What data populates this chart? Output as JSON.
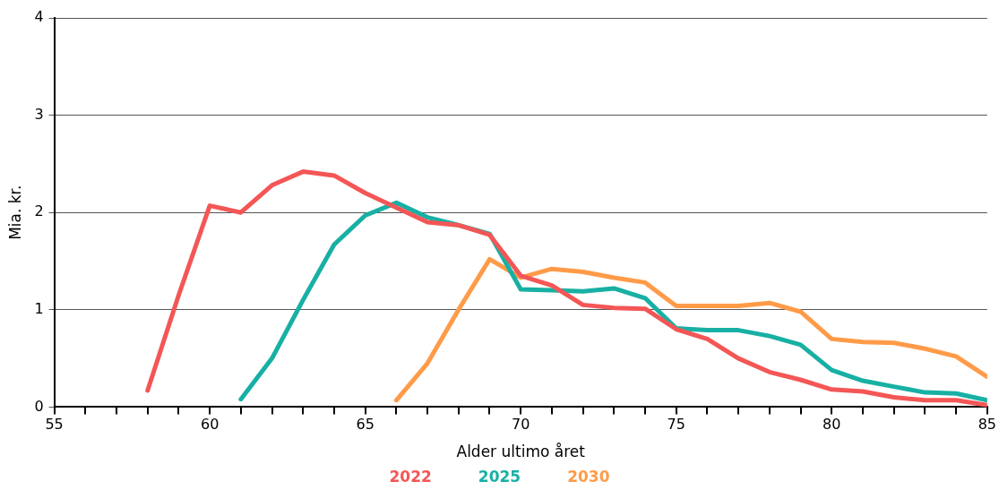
{
  "chart_data": {
    "type": "line",
    "xlabel": "Alder ultimo året",
    "ylabel": "Mia. kr.",
    "xlim": [
      55,
      85
    ],
    "xticks": [
      55,
      {
        "value": 56,
        "label": null
      },
      {
        "value": 57,
        "label": null
      },
      {
        "value": 58,
        "label": null
      },
      {
        "value": 59,
        "label": null
      },
      60,
      {
        "value": 61,
        "label": null
      },
      {
        "value": 62,
        "label": null
      },
      {
        "value": 63,
        "label": null
      },
      {
        "value": 64,
        "label": null
      },
      65,
      {
        "value": 66,
        "label": null
      },
      {
        "value": 67,
        "label": null
      },
      {
        "value": 68,
        "label": null
      },
      {
        "value": 69,
        "label": null
      },
      70,
      {
        "value": 71,
        "label": null
      },
      {
        "value": 72,
        "label": null
      },
      {
        "value": 73,
        "label": null
      },
      {
        "value": 74,
        "label": null
      },
      75,
      {
        "value": 76,
        "label": null
      },
      {
        "value": 77,
        "label": null
      },
      {
        "value": 78,
        "label": null
      },
      {
        "value": 79,
        "label": null
      },
      80,
      {
        "value": 81,
        "label": null
      },
      {
        "value": 82,
        "label": null
      },
      {
        "value": 83,
        "label": null
      },
      {
        "value": 84,
        "label": null
      },
      85
    ],
    "ylim": [
      0,
      4
    ],
    "yticks": [
      0,
      1,
      2,
      3,
      4
    ],
    "grid": "y",
    "legend": "bottom",
    "marker": "none",
    "line_style": "solid",
    "series": [
      {
        "name": "2022",
        "color": "#f45656",
        "x": [
          58,
          59,
          60,
          61,
          62,
          63,
          64,
          65,
          66,
          67,
          68,
          69,
          70,
          71,
          72,
          73,
          74,
          75,
          76,
          77,
          78,
          79,
          80,
          81,
          82,
          83,
          84,
          85
        ],
        "values": [
          0.17,
          1.15,
          2.07,
          2.0,
          2.28,
          2.42,
          2.38,
          2.2,
          2.05,
          1.9,
          1.87,
          1.77,
          1.35,
          1.25,
          1.05,
          1.02,
          1.01,
          0.8,
          0.7,
          0.5,
          0.36,
          0.28,
          0.18,
          0.16,
          0.1,
          0.07,
          0.07,
          0.02
        ]
      },
      {
        "name": "2025",
        "color": "#18b0a4",
        "x": [
          61,
          62,
          63,
          64,
          65,
          66,
          67,
          68,
          69,
          70,
          71,
          72,
          73,
          74,
          75,
          76,
          77,
          78,
          79,
          80,
          81,
          82,
          83,
          84,
          85
        ],
        "values": [
          0.08,
          0.5,
          1.1,
          1.67,
          1.97,
          2.1,
          1.95,
          1.87,
          1.78,
          1.21,
          1.2,
          1.19,
          1.22,
          1.12,
          0.81,
          0.79,
          0.79,
          0.73,
          0.64,
          0.38,
          0.27,
          0.21,
          0.15,
          0.14,
          0.07
        ]
      },
      {
        "name": "2030",
        "color": "#ff9b48",
        "x": [
          66,
          67,
          68,
          69,
          70,
          71,
          72,
          73,
          74,
          75,
          76,
          77,
          78,
          79,
          80,
          81,
          82,
          83,
          84,
          85
        ],
        "values": [
          0.07,
          0.45,
          1.0,
          1.52,
          1.33,
          1.42,
          1.39,
          1.33,
          1.28,
          1.04,
          1.04,
          1.04,
          1.07,
          0.98,
          0.7,
          0.67,
          0.66,
          0.6,
          0.52,
          0.31
        ]
      }
    ]
  }
}
